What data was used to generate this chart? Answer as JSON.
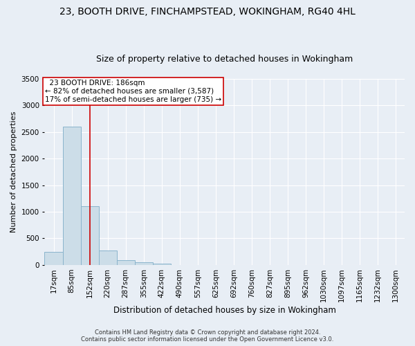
{
  "title": "23, BOOTH DRIVE, FINCHAMPSTEAD, WOKINGHAM, RG40 4HL",
  "subtitle": "Size of property relative to detached houses in Wokingham",
  "xlabel": "Distribution of detached houses by size in Wokingham",
  "ylabel": "Number of detached properties",
  "footer_line1": "Contains HM Land Registry data © Crown copyright and database right 2024.",
  "footer_line2": "Contains public sector information licensed under the Open Government Licence v3.0.",
  "bar_edges": [
    17,
    85,
    152,
    220,
    287,
    355,
    422,
    490,
    557,
    625,
    692,
    760,
    827,
    895,
    962,
    1030,
    1097,
    1165,
    1232,
    1300,
    1367
  ],
  "bar_heights": [
    250,
    2600,
    1100,
    270,
    85,
    45,
    20,
    3,
    0,
    0,
    0,
    0,
    0,
    0,
    0,
    0,
    0,
    0,
    0,
    0
  ],
  "bar_color": "#ccdde8",
  "bar_edgecolor": "#8ab4cc",
  "bar_linewidth": 0.7,
  "vline_x": 186,
  "vline_color": "#cc0000",
  "vline_linewidth": 1.2,
  "annotation_text": "  23 BOOTH DRIVE: 186sqm\n← 82% of detached houses are smaller (3,587)\n17% of semi-detached houses are larger (735) →",
  "annotation_box_color": "white",
  "annotation_box_edgecolor": "#cc0000",
  "annotation_fontsize": 7.5,
  "ylim": [
    0,
    3500
  ],
  "yticks": [
    0,
    500,
    1000,
    1500,
    2000,
    2500,
    3000,
    3500
  ],
  "title_fontsize": 10,
  "subtitle_fontsize": 9,
  "xlabel_fontsize": 8.5,
  "ylabel_fontsize": 8,
  "tick_fontsize": 7.5,
  "background_color": "#e8eef5",
  "plot_background_color": "#e8eef5",
  "grid_color": "white",
  "grid_linewidth": 0.8,
  "footer_fontsize": 6.0,
  "footer_color": "#333333"
}
